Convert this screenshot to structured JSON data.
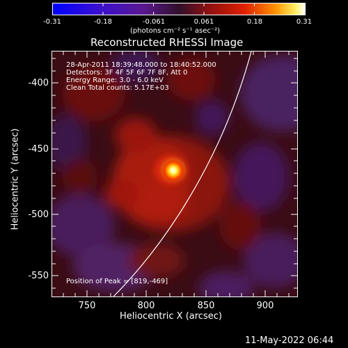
{
  "colorbar": {
    "ticks": [
      "-0.31",
      "-0.18",
      "-0.061",
      "0.061",
      "0.18",
      "0.31"
    ],
    "units": "(photons cm⁻² s⁻¹ asec⁻²)"
  },
  "plot": {
    "title": "Reconstructed RHESSI Image",
    "info_lines": [
      "28-Apr-2011 18:39:48.000 to 18:40:52.000",
      "Detectors: 3F 4F 5F 6F 7F 8F, Att 0",
      "Energy Range: 3.0 - 6.0 keV",
      "Clean    Total counts: 5.17E+03"
    ],
    "peak_label": "Position of Peak = [819,-469]",
    "xlabel": "Heliocentric X (arcsec)",
    "ylabel": "Heliocentric Y (arcsec)",
    "xticks": [
      "750",
      "800",
      "850",
      "900"
    ],
    "yticks": [
      "-400",
      "-450",
      "-500",
      "-550"
    ]
  },
  "footer": {
    "timestamp": "11-May-2022 06:44"
  },
  "colors": {
    "background": "#000000",
    "text": "#ffffff",
    "limb_line": "#ffffff"
  }
}
